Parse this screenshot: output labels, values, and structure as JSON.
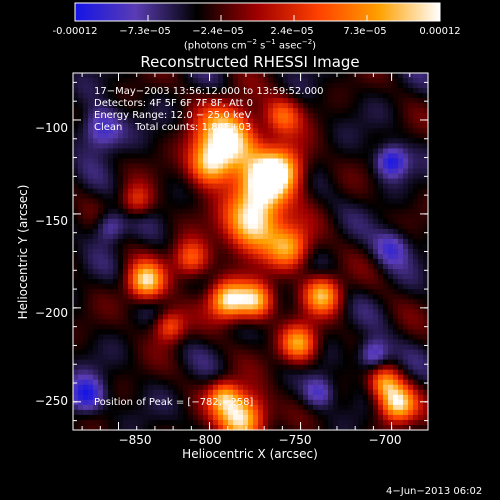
{
  "colorbar": {
    "ticks": [
      "-0.00012",
      "−7.3e−05",
      "−2.4e−05",
      "2.4e−05",
      "7.3e−05",
      "0.00012"
    ],
    "units_prefix": "(photons cm",
    "units_exp1": "−2",
    "units_mid": " s",
    "units_exp2": "−1",
    "units_suffix": " asec",
    "units_exp3": "−2",
    "units_close": ")",
    "gradient_stops": [
      "#1414e6",
      "#5a3cb4",
      "#000000",
      "#a00000",
      "#ff4000",
      "#ffa000",
      "#ffffff"
    ]
  },
  "info": {
    "line1": "17−May−2003 13:56:12.000 to 13:59:52.000",
    "line2": "Detectors: 4F 5F 6F 7F 8F, Att 0",
    "line3": "Energy Range: 12.0 − 25.0 keV",
    "line4": "Clean    Total counts: 1.84E+03",
    "peak": "Position of Peak = [−782,−258]"
  },
  "footer_date": "4−Jun−2013 06:02",
  "chart_data": {
    "type": "heatmap",
    "title": "Reconstructed RHESSI Image",
    "xlabel": "Heliocentric X (arcsec)",
    "ylabel": "Heliocentric Y (arcsec)",
    "xlim": [
      -875,
      -680
    ],
    "ylim": [
      -265,
      -75
    ],
    "xticks": [
      -850,
      -800,
      -750,
      -700
    ],
    "yticks": [
      -100,
      -150,
      -200,
      -250
    ],
    "xtick_labels": [
      "−850",
      "−800",
      "−750",
      "−700"
    ],
    "ytick_labels": [
      "−100",
      "−150",
      "−200",
      "−250"
    ],
    "colorscale_range": [
      -0.00012,
      0.00012
    ],
    "peak": [
      -782,
      -258
    ],
    "sources": [
      {
        "x": -790,
        "y": -110,
        "sigma": 12,
        "amp": 1.0
      },
      {
        "x": -776,
        "y": -154,
        "sigma": 11,
        "amp": 1.0
      },
      {
        "x": -760,
        "y": -126,
        "sigma": 9,
        "amp": 0.85
      },
      {
        "x": -771,
        "y": -135,
        "sigma": 9,
        "amp": 0.75
      },
      {
        "x": -800,
        "y": -124,
        "sigma": 8,
        "amp": 0.7
      },
      {
        "x": -790,
        "y": -196,
        "sigma": 7,
        "amp": 0.9
      },
      {
        "x": -775,
        "y": -196,
        "sigma": 7,
        "amp": 0.85
      },
      {
        "x": -835,
        "y": -186,
        "sigma": 7,
        "amp": 0.85
      },
      {
        "x": -738,
        "y": -193,
        "sigma": 7,
        "amp": 0.75
      },
      {
        "x": -756,
        "y": -168,
        "sigma": 8,
        "amp": 0.7
      },
      {
        "x": -751,
        "y": -219,
        "sigma": 7,
        "amp": 0.75
      },
      {
        "x": -810,
        "y": -174,
        "sigma": 7,
        "amp": 0.6
      },
      {
        "x": -822,
        "y": -210,
        "sigma": 6,
        "amp": 0.55
      },
      {
        "x": -782,
        "y": -258,
        "sigma": 9,
        "amp": 1.0
      },
      {
        "x": -792,
        "y": -247,
        "sigma": 6,
        "amp": 0.6
      },
      {
        "x": -697,
        "y": -251,
        "sigma": 7,
        "amp": 0.9
      },
      {
        "x": -704,
        "y": -240,
        "sigma": 6,
        "amp": 0.6
      },
      {
        "x": -760,
        "y": -98,
        "sigma": 7,
        "amp": 0.5
      },
      {
        "x": -840,
        "y": -143,
        "sigma": 6,
        "amp": 0.4
      },
      {
        "x": -700,
        "y": -122,
        "sigma": 6,
        "amp": -0.5
      },
      {
        "x": -860,
        "y": -105,
        "sigma": 8,
        "amp": -0.45
      },
      {
        "x": -868,
        "y": -247,
        "sigma": 7,
        "amp": -0.5
      },
      {
        "x": -710,
        "y": -225,
        "sigma": 6,
        "amp": -0.45
      },
      {
        "x": -700,
        "y": -168,
        "sigma": 7,
        "amp": -0.35
      },
      {
        "x": -855,
        "y": -157,
        "sigma": 6,
        "amp": -0.35
      },
      {
        "x": -740,
        "y": -245,
        "sigma": 6,
        "amp": -0.35
      }
    ]
  }
}
